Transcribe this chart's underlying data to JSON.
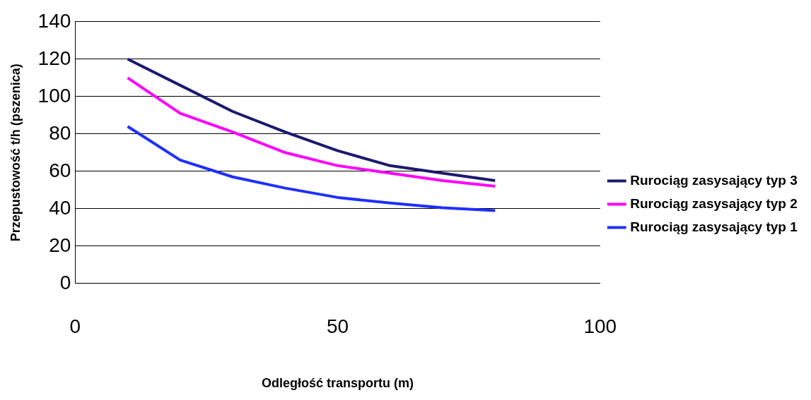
{
  "chart_data": {
    "type": "line",
    "xlabel": "Odległość transportu (m)",
    "ylabel": "Przepustowość t/h (pszenica)",
    "x": [
      10,
      20,
      30,
      40,
      50,
      60,
      70,
      80
    ],
    "series": [
      {
        "name": "Rurociąg zasysający typ 3",
        "color": "#1a1a6e",
        "values": [
          120,
          106,
          92,
          81,
          71,
          63,
          59,
          55
        ]
      },
      {
        "name": "Rurociąg zasysający typ 2",
        "color": "#ff00ff",
        "values": [
          110,
          91,
          81,
          70,
          63,
          59,
          55,
          52
        ]
      },
      {
        "name": "Rurociąg zasysający typ 1",
        "color": "#1f2fff",
        "values": [
          84,
          66,
          57,
          51,
          46,
          43,
          40.5,
          39
        ]
      }
    ],
    "xlim": [
      0,
      100
    ],
    "xticks": [
      0,
      50,
      100
    ],
    "ylim": [
      0,
      140
    ],
    "yticks": [
      0,
      20,
      40,
      60,
      80,
      100,
      120,
      140
    ],
    "grid": "y",
    "legend": "right",
    "line_style": "solid"
  }
}
